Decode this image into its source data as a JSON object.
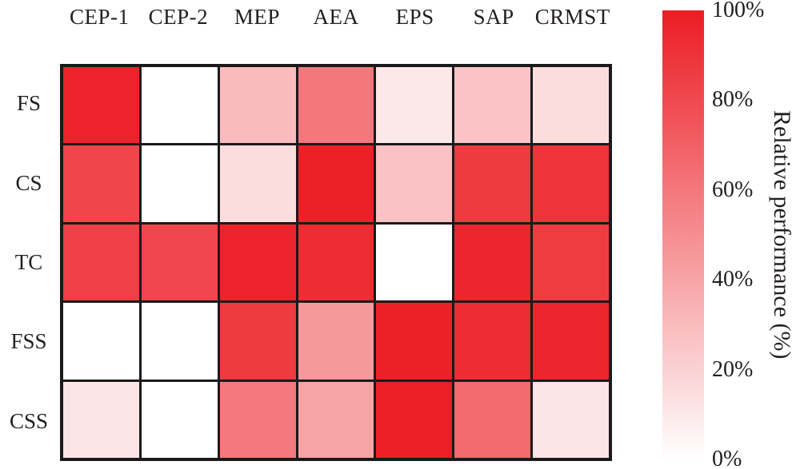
{
  "chart_data": {
    "type": "heatmap",
    "title": "",
    "columns": [
      "CEP-1",
      "CEP-2",
      "MEP",
      "AEA",
      "EPS",
      "SAP",
      "CRMST"
    ],
    "rows": [
      "FS",
      "CS",
      "TC",
      "FSS",
      "CSS"
    ],
    "values": [
      [
        97,
        0,
        30,
        60,
        10,
        26,
        15
      ],
      [
        82,
        0,
        15,
        98,
        27,
        87,
        90
      ],
      [
        84,
        81,
        97,
        93,
        0,
        96,
        86
      ],
      [
        0,
        0,
        87,
        45,
        98,
        93,
        96
      ],
      [
        12,
        0,
        59,
        40,
        99,
        66,
        12
      ]
    ],
    "value_unit": "%",
    "colorbar": {
      "label": "Relative performance (%)",
      "ticks": [
        "100%",
        "80%",
        "60%",
        "40%",
        "20%",
        "0%"
      ],
      "min": 0,
      "max": 100,
      "color_max": "#EC1C24",
      "color_min": "#FFFFFF"
    },
    "grid_line_color": "#1a1a1a",
    "text_color": "#231f20"
  }
}
